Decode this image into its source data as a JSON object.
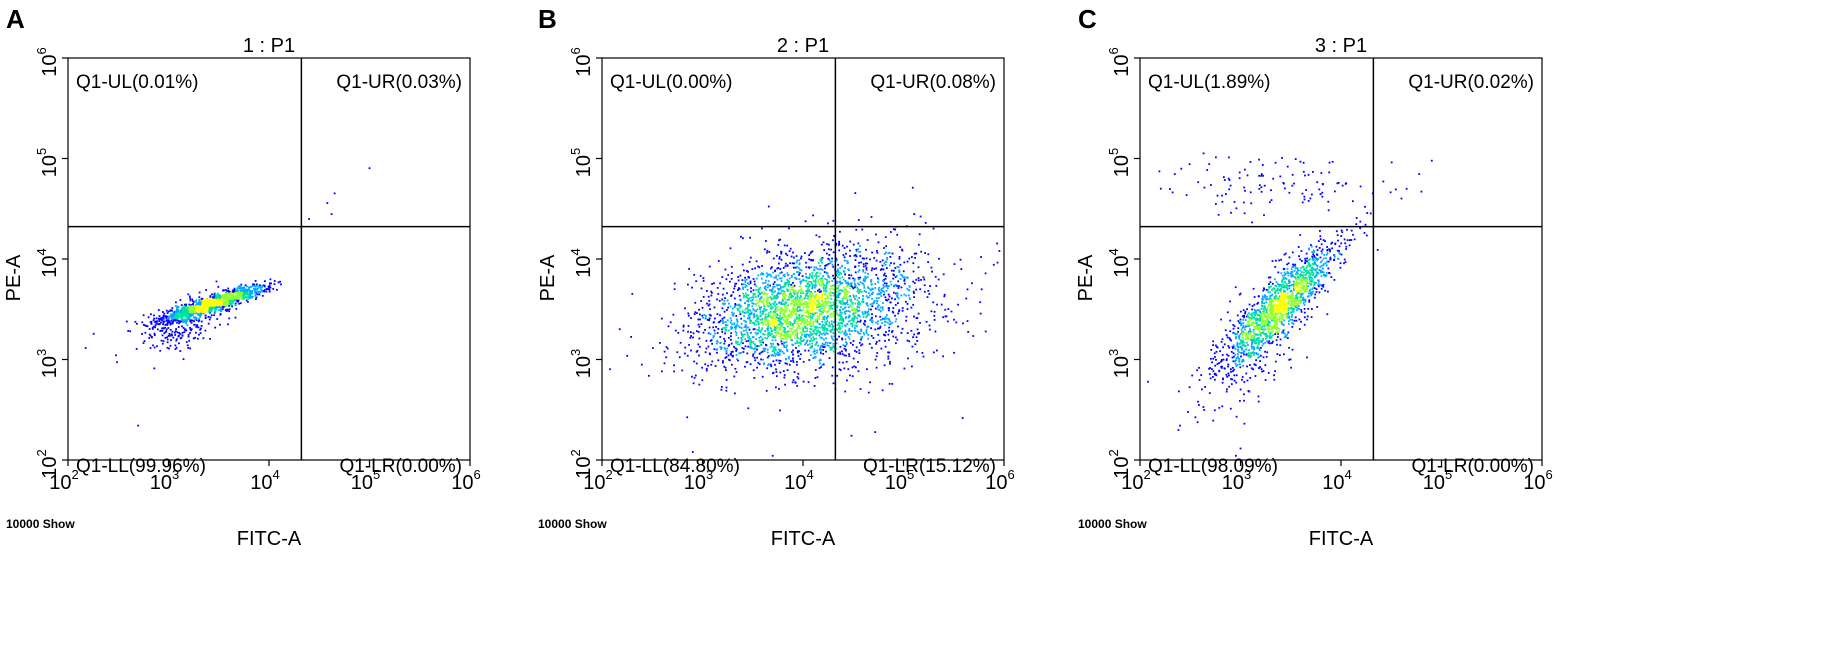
{
  "chart_data": [
    {
      "type": "scatter",
      "panel_letter": "A",
      "title": "1 : P1",
      "xlabel": "FITC-A",
      "ylabel": "PE-A",
      "x_scale": "log",
      "y_scale": "log",
      "xlim": [
        100,
        1000000
      ],
      "ylim": [
        100,
        1000000
      ],
      "x_ticks": [
        {
          "base": "10",
          "exp": "2"
        },
        {
          "base": "10",
          "exp": "3"
        },
        {
          "base": "10",
          "exp": "4"
        },
        {
          "base": "10",
          "exp": "5"
        },
        {
          "base": "10",
          "exp": "6"
        }
      ],
      "y_ticks": [
        {
          "base": "10",
          "exp": "2"
        },
        {
          "base": "10",
          "exp": "3"
        },
        {
          "base": "10",
          "exp": "4"
        },
        {
          "base": "10",
          "exp": "5"
        },
        {
          "base": "10",
          "exp": "6"
        }
      ],
      "gate": {
        "x": 21000,
        "y": 21000
      },
      "quadrants": {
        "UL": "Q1-UL(0.01%)",
        "UR": "Q1-UR(0.03%)",
        "LL": "Q1-LL(99.96%)",
        "LR": "Q1-LR(0.00%)"
      },
      "events_label": "10000 Show",
      "point_color": "#0000ff",
      "density_colors": [
        "#0000ff",
        "#00aaff",
        "#00e0a0",
        "#90ff30",
        "#ffff00"
      ],
      "clusters": [
        {
          "cx": 2800,
          "cy": 3600,
          "sx": 0.26,
          "sy": 0.09,
          "rho": 0.9,
          "n": 1300
        },
        {
          "cx": 1500,
          "cy": 2300,
          "sx": 0.22,
          "sy": 0.15,
          "rho": 0.5,
          "n": 250
        }
      ],
      "outliers": [
        [
          45000,
          45000
        ],
        [
          38000,
          36000
        ],
        [
          42000,
          28000
        ],
        [
          100000,
          80000
        ],
        [
          500,
          220
        ],
        [
          150,
          1300
        ],
        [
          25000,
          25000
        ],
        [
          300,
          1100
        ],
        [
          180,
          1800
        ]
      ]
    },
    {
      "type": "scatter",
      "panel_letter": "B",
      "title": "2 : P1",
      "xlabel": "FITC-A",
      "ylabel": "PE-A",
      "x_scale": "log",
      "y_scale": "log",
      "xlim": [
        100,
        1000000
      ],
      "ylim": [
        100,
        1000000
      ],
      "x_ticks": [
        {
          "base": "10",
          "exp": "2"
        },
        {
          "base": "10",
          "exp": "3"
        },
        {
          "base": "10",
          "exp": "4"
        },
        {
          "base": "10",
          "exp": "5"
        },
        {
          "base": "10",
          "exp": "6"
        }
      ],
      "y_ticks": [
        {
          "base": "10",
          "exp": "2"
        },
        {
          "base": "10",
          "exp": "3"
        },
        {
          "base": "10",
          "exp": "4"
        },
        {
          "base": "10",
          "exp": "5"
        },
        {
          "base": "10",
          "exp": "6"
        }
      ],
      "gate": {
        "x": 21000,
        "y": 21000
      },
      "quadrants": {
        "UL": "Q1-UL(0.00%)",
        "UR": "Q1-UR(0.08%)",
        "LL": "Q1-LL(84.80%)",
        "LR": "Q1-LR(15.12%)"
      },
      "events_label": "10000 Show",
      "point_color": "#0000ff",
      "density_colors": [
        "#0000ff",
        "#00aaff",
        "#00e0a0",
        "#90ff30",
        "#ffff00"
      ],
      "clusters": [
        {
          "cx": 8000,
          "cy": 3000,
          "sx": 0.48,
          "sy": 0.27,
          "rho": 0.3,
          "n": 2400
        },
        {
          "cx": 30000,
          "cy": 3500,
          "sx": 0.55,
          "sy": 0.4,
          "rho": 0.1,
          "n": 700
        }
      ],
      "outliers": [
        [
          200,
          4500
        ],
        [
          150,
          2000
        ],
        [
          120,
          800
        ],
        [
          900000,
          12000
        ],
        [
          600000,
          5000
        ],
        [
          300000,
          3000
        ],
        [
          20000,
          24000
        ],
        [
          800,
          120
        ],
        [
          5000,
          110
        ]
      ]
    },
    {
      "type": "scatter",
      "panel_letter": "C",
      "title": "3 : P1",
      "xlabel": "FITC-A",
      "ylabel": "PE-A",
      "x_scale": "log",
      "y_scale": "log",
      "xlim": [
        100,
        1000000
      ],
      "ylim": [
        100,
        1000000
      ],
      "x_ticks": [
        {
          "base": "10",
          "exp": "2"
        },
        {
          "base": "10",
          "exp": "3"
        },
        {
          "base": "10",
          "exp": "4"
        },
        {
          "base": "10",
          "exp": "5"
        },
        {
          "base": "10",
          "exp": "6"
        }
      ],
      "y_ticks": [
        {
          "base": "10",
          "exp": "2"
        },
        {
          "base": "10",
          "exp": "3"
        },
        {
          "base": "10",
          "exp": "4"
        },
        {
          "base": "10",
          "exp": "5"
        },
        {
          "base": "10",
          "exp": "6"
        }
      ],
      "gate": {
        "x": 21000,
        "y": 21000
      },
      "quadrants": {
        "UL": "Q1-UL(1.89%)",
        "UR": "Q1-UR(0.02%)",
        "LL": "Q1-LL(98.09%)",
        "LR": "Q1-LR(0.00%)"
      },
      "events_label": "10000 Show",
      "point_color": "#0000ff",
      "density_colors": [
        "#0000ff",
        "#00aaff",
        "#00e0a0",
        "#90ff30",
        "#ffff00"
      ],
      "clusters": [
        {
          "cx": 2500,
          "cy": 3500,
          "sx": 0.3,
          "sy": 0.32,
          "rho": 0.88,
          "n": 1400
        },
        {
          "cx": 1500,
          "cy": 1500,
          "sx": 0.25,
          "sy": 0.35,
          "rho": 0.6,
          "n": 250
        },
        {
          "cx": 2500,
          "cy": 55000,
          "sx": 0.55,
          "sy": 0.15,
          "rho": 0.0,
          "n": 110
        }
      ],
      "outliers": [
        [
          45000,
          50000
        ],
        [
          40000,
          40000
        ],
        [
          80000,
          95000
        ],
        [
          60000,
          70000
        ],
        [
          250,
          220
        ],
        [
          300,
          300
        ],
        [
          120,
          600
        ],
        [
          1000,
          130
        ],
        [
          900,
          110
        ]
      ]
    }
  ]
}
